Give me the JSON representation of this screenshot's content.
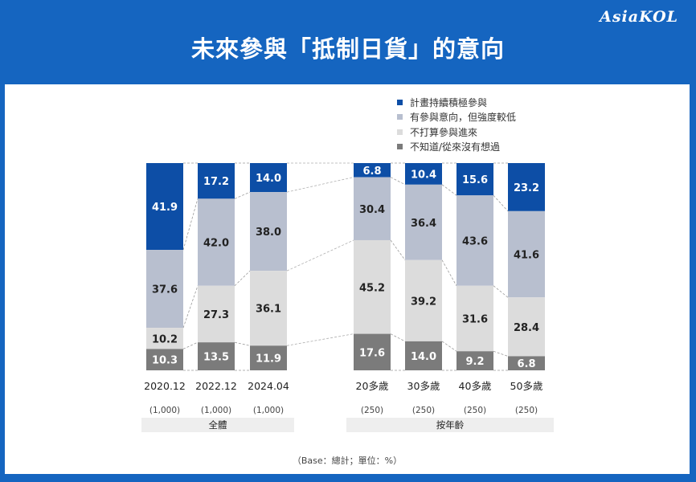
{
  "logo": "AsiaKOL",
  "title": "未來參與「抵制日貨」的意向",
  "base_note": "（Base：總計；單位：%）",
  "colors": {
    "background": "#1565c0",
    "s1": "#0d4ea6",
    "s2": "#b8bfcf",
    "s3": "#dcdcdc",
    "s4": "#7b7b7b"
  },
  "chart_data": {
    "type": "bar",
    "stacked": true,
    "percent_stacked": true,
    "categories": [
      "2020.12",
      "2022.12",
      "2024.04",
      "20多歲",
      "30多歲",
      "40多歲",
      "50多歲"
    ],
    "bases": [
      "(1,000)",
      "(1,000)",
      "(1,000)",
      "(250)",
      "(250)",
      "(250)",
      "(250)"
    ],
    "groups": [
      {
        "label": "全體",
        "categories": [
          "2020.12",
          "2022.12",
          "2024.04"
        ]
      },
      {
        "label": "按年齡",
        "categories": [
          "20多歲",
          "30多歲",
          "40多歲",
          "50多歲"
        ]
      }
    ],
    "series": [
      {
        "name": "計畫持續積極參與",
        "values": [
          41.9,
          17.2,
          14.0,
          6.8,
          10.4,
          15.6,
          23.2
        ]
      },
      {
        "name": "有參與意向，但強度較低",
        "values": [
          37.6,
          42.0,
          38.0,
          30.4,
          36.4,
          43.6,
          41.6
        ]
      },
      {
        "name": "不打算參與進來",
        "values": [
          10.2,
          27.3,
          36.1,
          45.2,
          39.2,
          31.6,
          28.4
        ]
      },
      {
        "name": "不知道/從來沒有想過",
        "values": [
          10.3,
          13.5,
          11.9,
          17.6,
          14.0,
          9.2,
          6.8
        ]
      }
    ],
    "ylim": [
      0,
      100
    ],
    "legend": "top-right",
    "grid": false
  }
}
